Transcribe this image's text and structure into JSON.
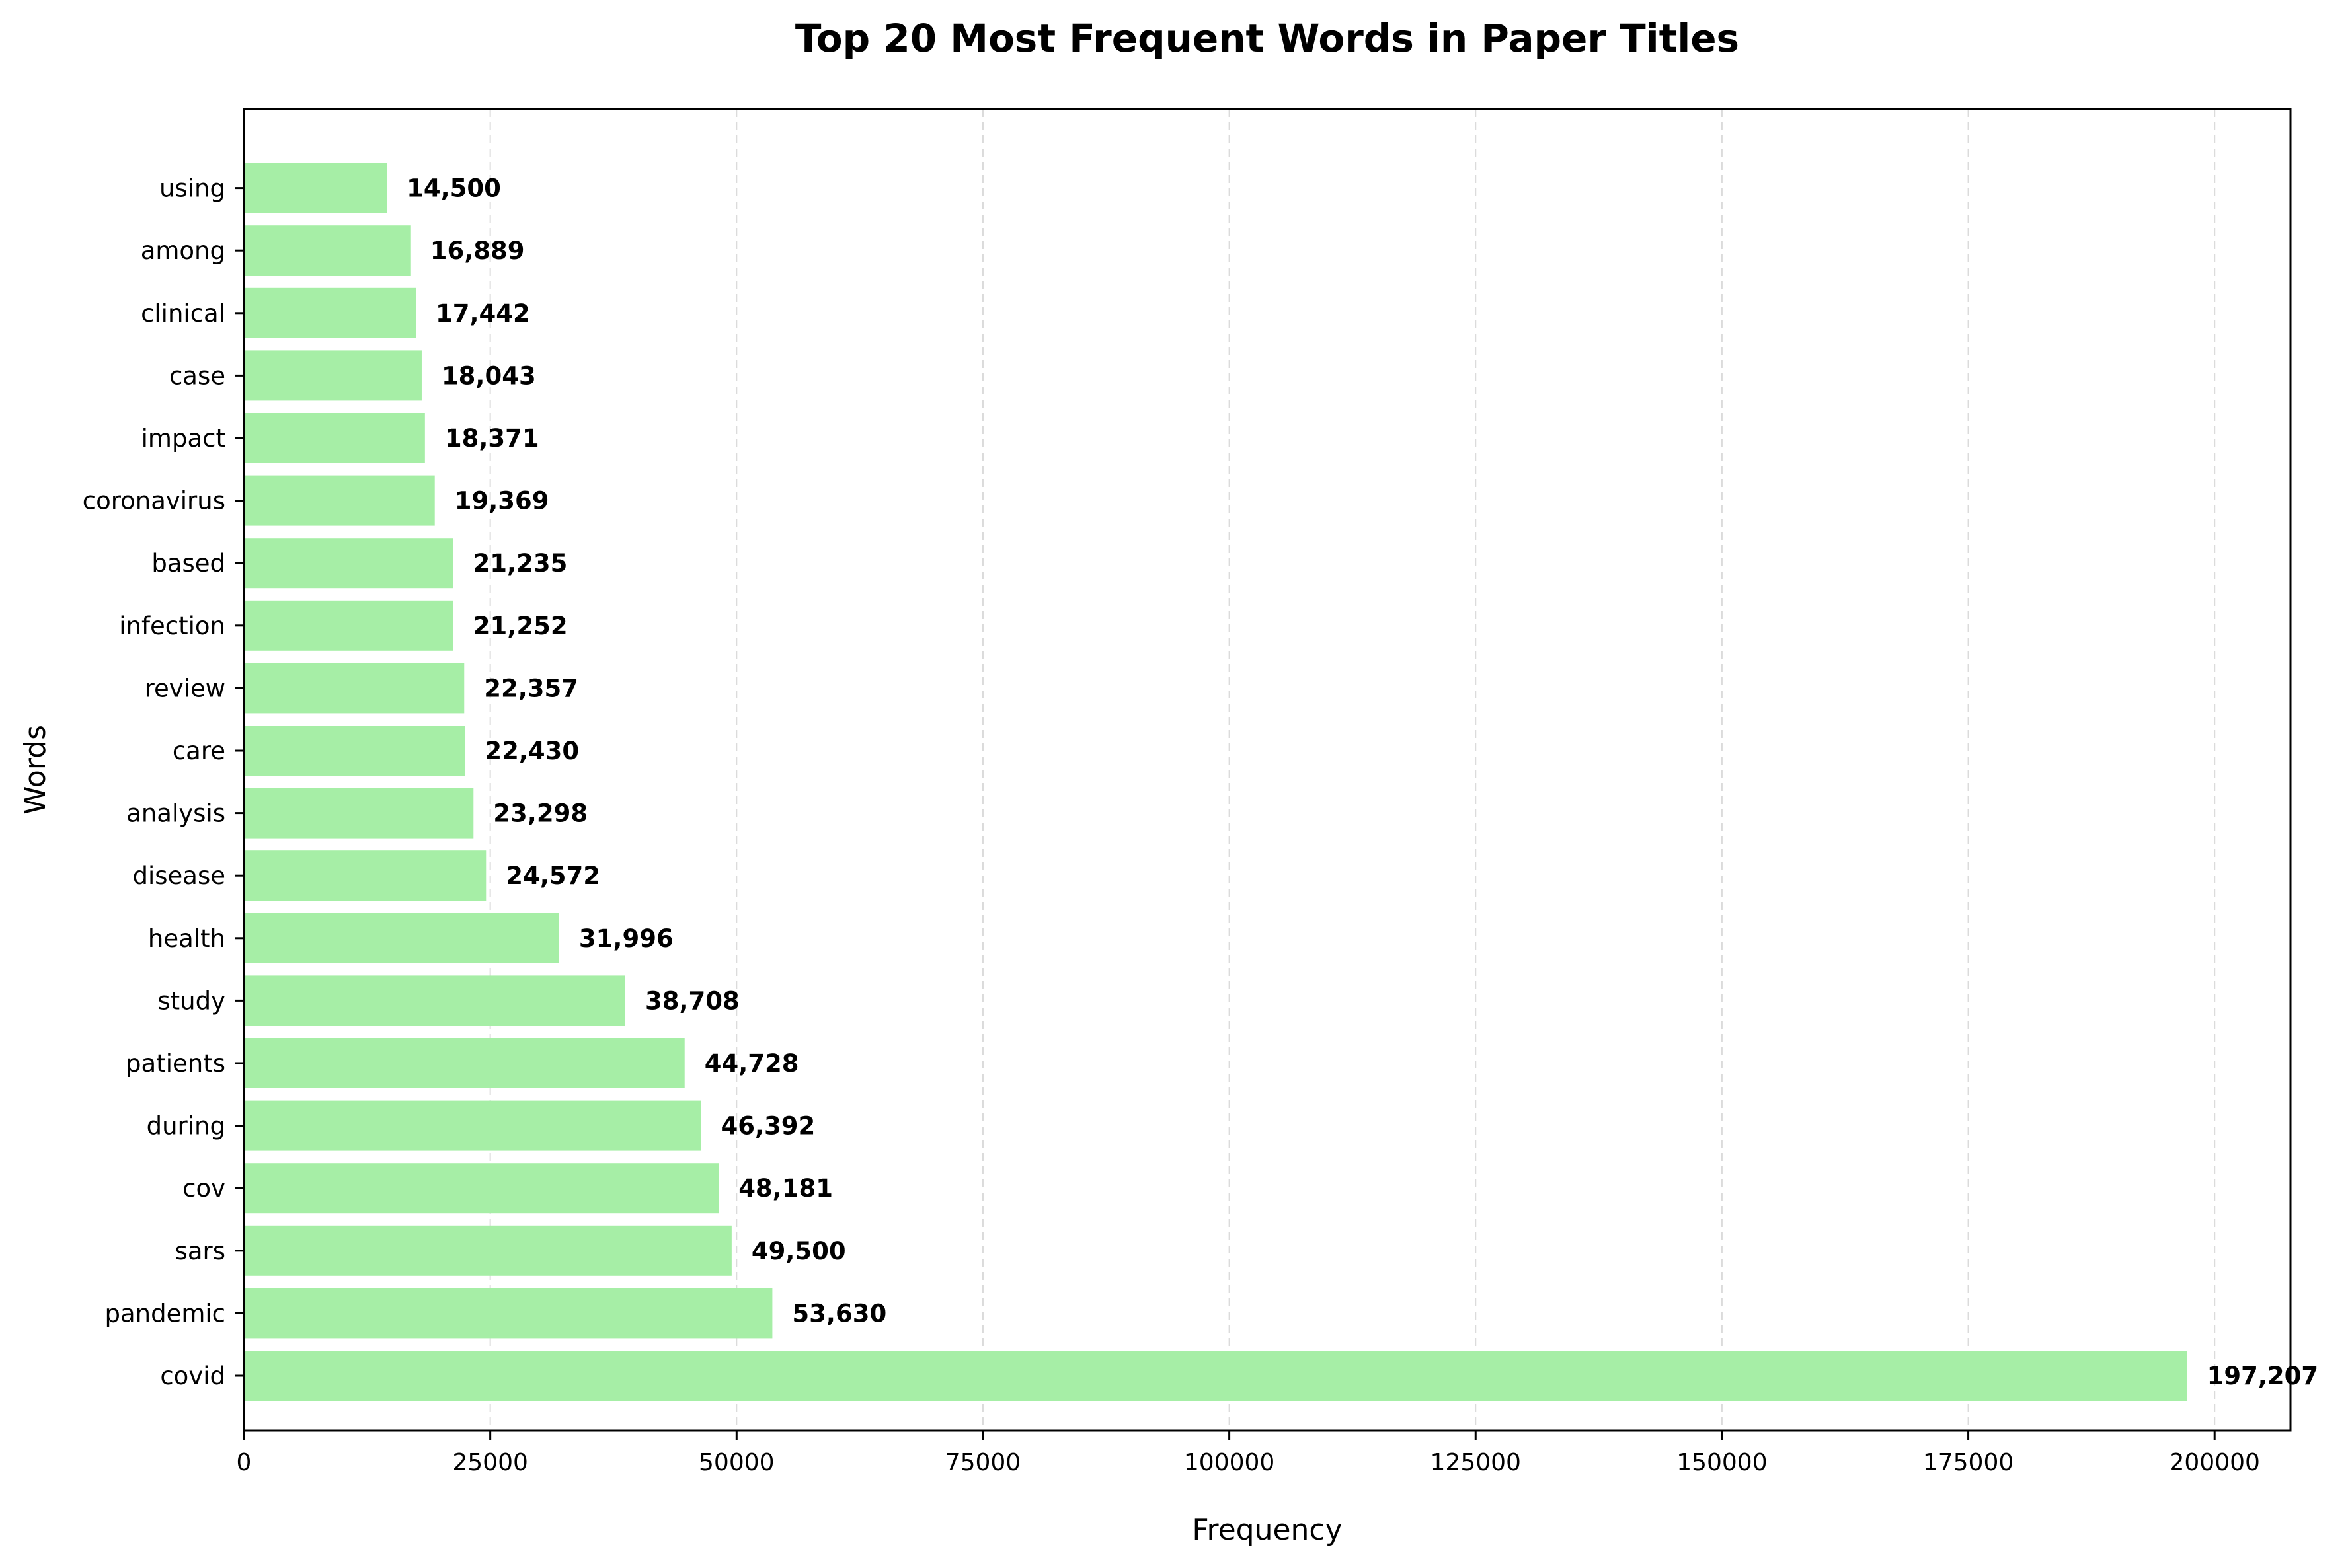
{
  "chart_data": {
    "type": "bar",
    "orientation": "horizontal",
    "title": "Top 20 Most Frequent Words in Paper Titles",
    "xlabel": "Frequency",
    "ylabel": "Words",
    "xlim": [
      0,
      207700
    ],
    "xticks": [
      0,
      25000,
      50000,
      75000,
      100000,
      125000,
      150000,
      175000,
      200000
    ],
    "xtick_labels": [
      "0",
      "25000",
      "50000",
      "75000",
      "100000",
      "125000",
      "150000",
      "175000",
      "200000"
    ],
    "grid": "x-dashed",
    "categories": [
      "covid",
      "pandemic",
      "sars",
      "cov",
      "during",
      "patients",
      "study",
      "health",
      "disease",
      "analysis",
      "care",
      "review",
      "infection",
      "based",
      "coronavirus",
      "impact",
      "case",
      "clinical",
      "among",
      "using"
    ],
    "values": [
      197207,
      53630,
      49500,
      48181,
      46392,
      44728,
      38708,
      31996,
      24572,
      23298,
      22430,
      22357,
      21252,
      21235,
      19369,
      18371,
      18043,
      17442,
      16889,
      14500
    ],
    "value_labels": [
      "197,207",
      "53,630",
      "49,500",
      "48,181",
      "46,392",
      "44,728",
      "38,708",
      "31,996",
      "24,572",
      "23,298",
      "22,430",
      "22,357",
      "21,252",
      "21,235",
      "19,369",
      "18,371",
      "18,043",
      "17,442",
      "16,889",
      "14,500"
    ],
    "bar_color": "#a6eea6"
  }
}
